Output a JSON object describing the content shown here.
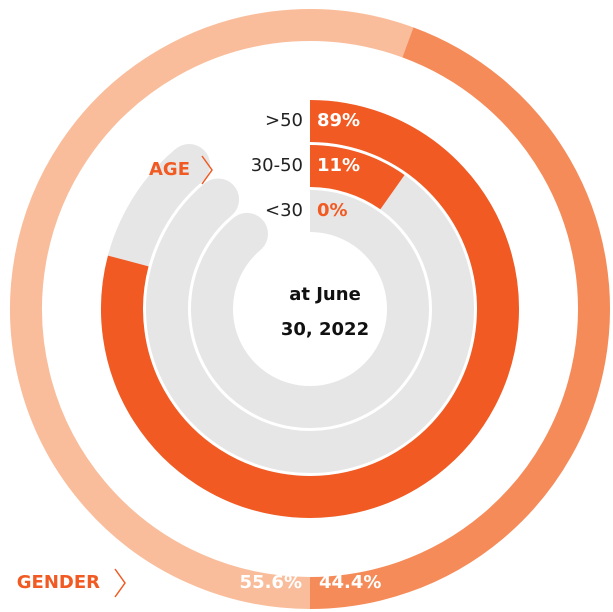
{
  "chart_data": [
    {
      "type": "donut",
      "label": "GENDER",
      "values": [
        55.6,
        44.4
      ],
      "value_labels": [
        "55.6%",
        "44.4%"
      ],
      "colors": [
        "#f9bd9b",
        "#f68b5a"
      ]
    },
    {
      "type": "radial_bar",
      "label": "AGE",
      "categories": [
        ">50",
        "30-50",
        "<30"
      ],
      "values": [
        89,
        11,
        0
      ],
      "value_labels": [
        "89%",
        "11%",
        "0%"
      ],
      "color": "#f15a22",
      "track_color": "#e6e6e6",
      "annotations": [
        "at June",
        "30, 2022"
      ]
    }
  ]
}
